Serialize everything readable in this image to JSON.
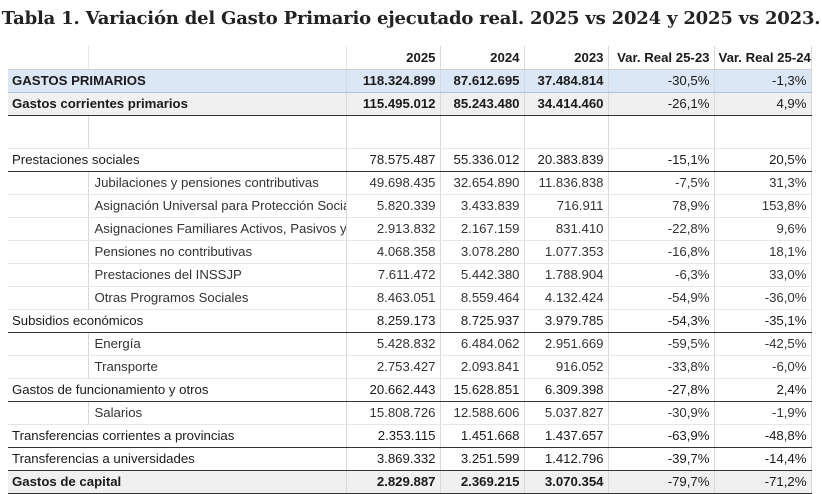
{
  "title": "Tabla 1. Variación del Gasto Primario ejecutado real. 2025 vs 2024 y 2025 vs 2023.",
  "headers": [
    "2025",
    "2024",
    "2023",
    "Var. Real 25-23",
    "Var. Real 25-24"
  ],
  "rows": {
    "gastos_primarios": {
      "label": "GASTOS PRIMARIOS",
      "v2025": "118.324.899",
      "v2024": "87.612.695",
      "v2023": "37.484.814",
      "var2523": "-30,5%",
      "var2524": "-1,3%"
    },
    "gastos_corrientes": {
      "label": "Gastos corrientes primarios",
      "v2025": "115.495.012",
      "v2024": "85.243.480",
      "v2023": "34.414.460",
      "var2523": "-26,1%",
      "var2524": "4,9%"
    },
    "prestaciones": {
      "label": "Prestaciones sociales",
      "v2025": "78.575.487",
      "v2024": "55.336.012",
      "v2023": "20.383.839",
      "var2523": "-15,1%",
      "var2524": "20,5%"
    },
    "jubilaciones": {
      "label": "Jubilaciones y pensiones contributivas",
      "v2025": "49.698.435",
      "v2024": "32.654.890",
      "v2023": "11.836.838",
      "var2523": "-7,5%",
      "var2524": "31,3%"
    },
    "auh": {
      "label": "Asignación Universal para Protección Socia",
      "v2025": "5.820.339",
      "v2024": "3.433.839",
      "v2023": "716.911",
      "var2523": "78,9%",
      "var2524": "153,8%"
    },
    "asig_familiares": {
      "label": "Asignaciones Familiares Activos, Pasivos y o",
      "v2025": "2.913.832",
      "v2024": "2.167.159",
      "v2023": "831.410",
      "var2523": "-22,8%",
      "var2524": "9,6%"
    },
    "pensiones_nc": {
      "label": "Pensiones no contributivas",
      "v2025": "4.068.358",
      "v2024": "3.078.280",
      "v2023": "1.077.353",
      "var2523": "-16,8%",
      "var2524": "18,1%"
    },
    "inssjp": {
      "label": "Prestaciones del INSSJP",
      "v2025": "7.611.472",
      "v2024": "5.442.380",
      "v2023": "1.788.904",
      "var2523": "-6,3%",
      "var2524": "33,0%"
    },
    "otros_programas": {
      "label": "Otras Programos Sociales",
      "v2025": "8.463.051",
      "v2024": "8.559.464",
      "v2023": "4.132.424",
      "var2523": "-54,9%",
      "var2524": "-36,0%"
    },
    "subsidios": {
      "label": "Subsidios económicos",
      "v2025": "8.259.173",
      "v2024": "8.725.937",
      "v2023": "3.979.785",
      "var2523": "-54,3%",
      "var2524": "-35,1%"
    },
    "energia": {
      "label": "Energía",
      "v2025": "5.428.832",
      "v2024": "6.484.062",
      "v2023": "2.951.669",
      "var2523": "-59,5%",
      "var2524": "-42,5%"
    },
    "transporte": {
      "label": "Transporte",
      "v2025": "2.753.427",
      "v2024": "2.093.841",
      "v2023": "916.052",
      "var2523": "-33,8%",
      "var2524": "-6,0%"
    },
    "funcionamiento": {
      "label": "Gastos de funcionamiento y otros",
      "v2025": "20.662.443",
      "v2024": "15.628.851",
      "v2023": "6.309.398",
      "var2523": "-27,8%",
      "var2524": "2,4%"
    },
    "salarios": {
      "label": "Salarios",
      "v2025": "15.808.726",
      "v2024": "12.588.606",
      "v2023": "5.037.827",
      "var2523": "-30,9%",
      "var2524": "-1,9%"
    },
    "transf_provincias": {
      "label": "Transferencias corrientes a provincias",
      "v2025": "2.353.115",
      "v2024": "1.451.668",
      "v2023": "1.437.657",
      "var2523": "-63,9%",
      "var2524": "-48,8%"
    },
    "transf_universidades": {
      "label": "Transferencias a universidades",
      "v2025": "3.869.332",
      "v2024": "3.251.599",
      "v2023": "1.412.796",
      "var2523": "-39,7%",
      "var2524": "-14,4%"
    },
    "gastos_capital": {
      "label": "Gastos de capital",
      "v2025": "2.829.887",
      "v2024": "2.369.215",
      "v2023": "3.070.354",
      "var2523": "-79,7%",
      "var2524": "-71,2%"
    }
  },
  "colors": {
    "highlight_blue": "#dbe7f5",
    "highlight_gray": "#f0f0f0"
  }
}
